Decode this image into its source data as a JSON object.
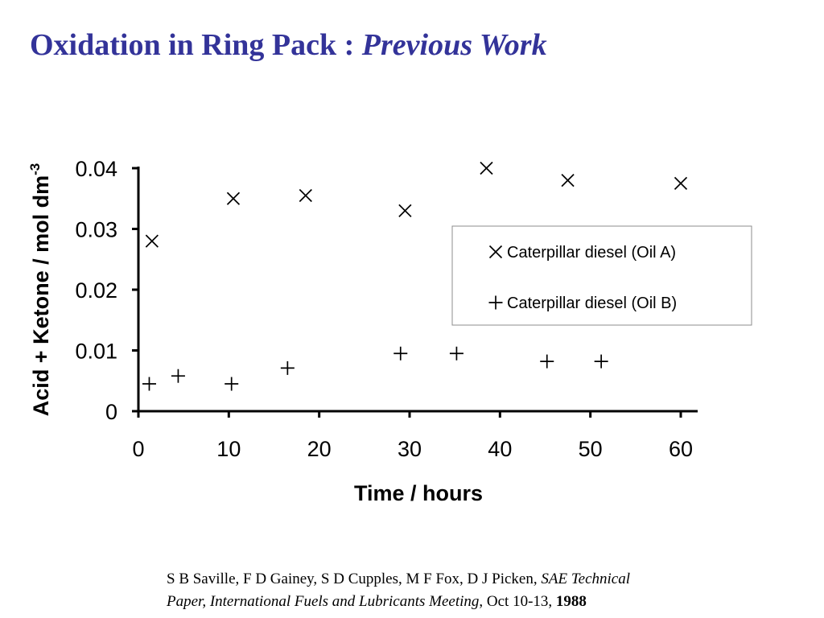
{
  "slide": {
    "title_main": "Oxidation in Ring Pack : ",
    "title_italic": "Previous Work",
    "title_color": "#333399"
  },
  "citation": {
    "authors": "S B Saville, F D Gainey, S D Cupples, M F Fox, D J Picken, ",
    "venue_italic_1": "SAE  Technical",
    "venue_italic_2": "Paper, International Fuels and Lubricants Meeting",
    "date": ", Oct 10-13, ",
    "year": "1988"
  },
  "chart_data": {
    "type": "scatter",
    "xlabel": "Time / hours",
    "ylabel_main": "Acid + Ketone / mol dm",
    "ylabel_sup": "-3",
    "xlim": [
      0,
      60
    ],
    "ylim": [
      0,
      0.04
    ],
    "xticks": [
      0,
      10,
      20,
      30,
      40,
      50,
      60
    ],
    "yticks": [
      0,
      0.01,
      0.02,
      0.03,
      0.04
    ],
    "xtick_labels": [
      "0",
      "10",
      "20",
      "30",
      "40",
      "50",
      "60"
    ],
    "ytick_labels": [
      "0",
      "0.01",
      "0.02",
      "0.03",
      "0.04"
    ],
    "grid": false,
    "legend_position": "upper-right",
    "series": [
      {
        "name": "Caterpillar diesel (Oil A)",
        "marker": "x",
        "color": "#000000",
        "x": [
          1.5,
          10.5,
          18.5,
          29.5,
          38.5,
          47.5,
          60.0
        ],
        "y": [
          0.028,
          0.035,
          0.0355,
          0.033,
          0.04,
          0.038,
          0.0375
        ]
      },
      {
        "name": "Caterpillar diesel (Oil B)",
        "marker": "+",
        "color": "#000000",
        "x": [
          1.2,
          4.4,
          10.3,
          16.5,
          29.0,
          35.2,
          45.2,
          51.2
        ],
        "y": [
          0.0045,
          0.0058,
          0.0045,
          0.0071,
          0.0095,
          0.0095,
          0.0082,
          0.0082
        ]
      }
    ]
  }
}
